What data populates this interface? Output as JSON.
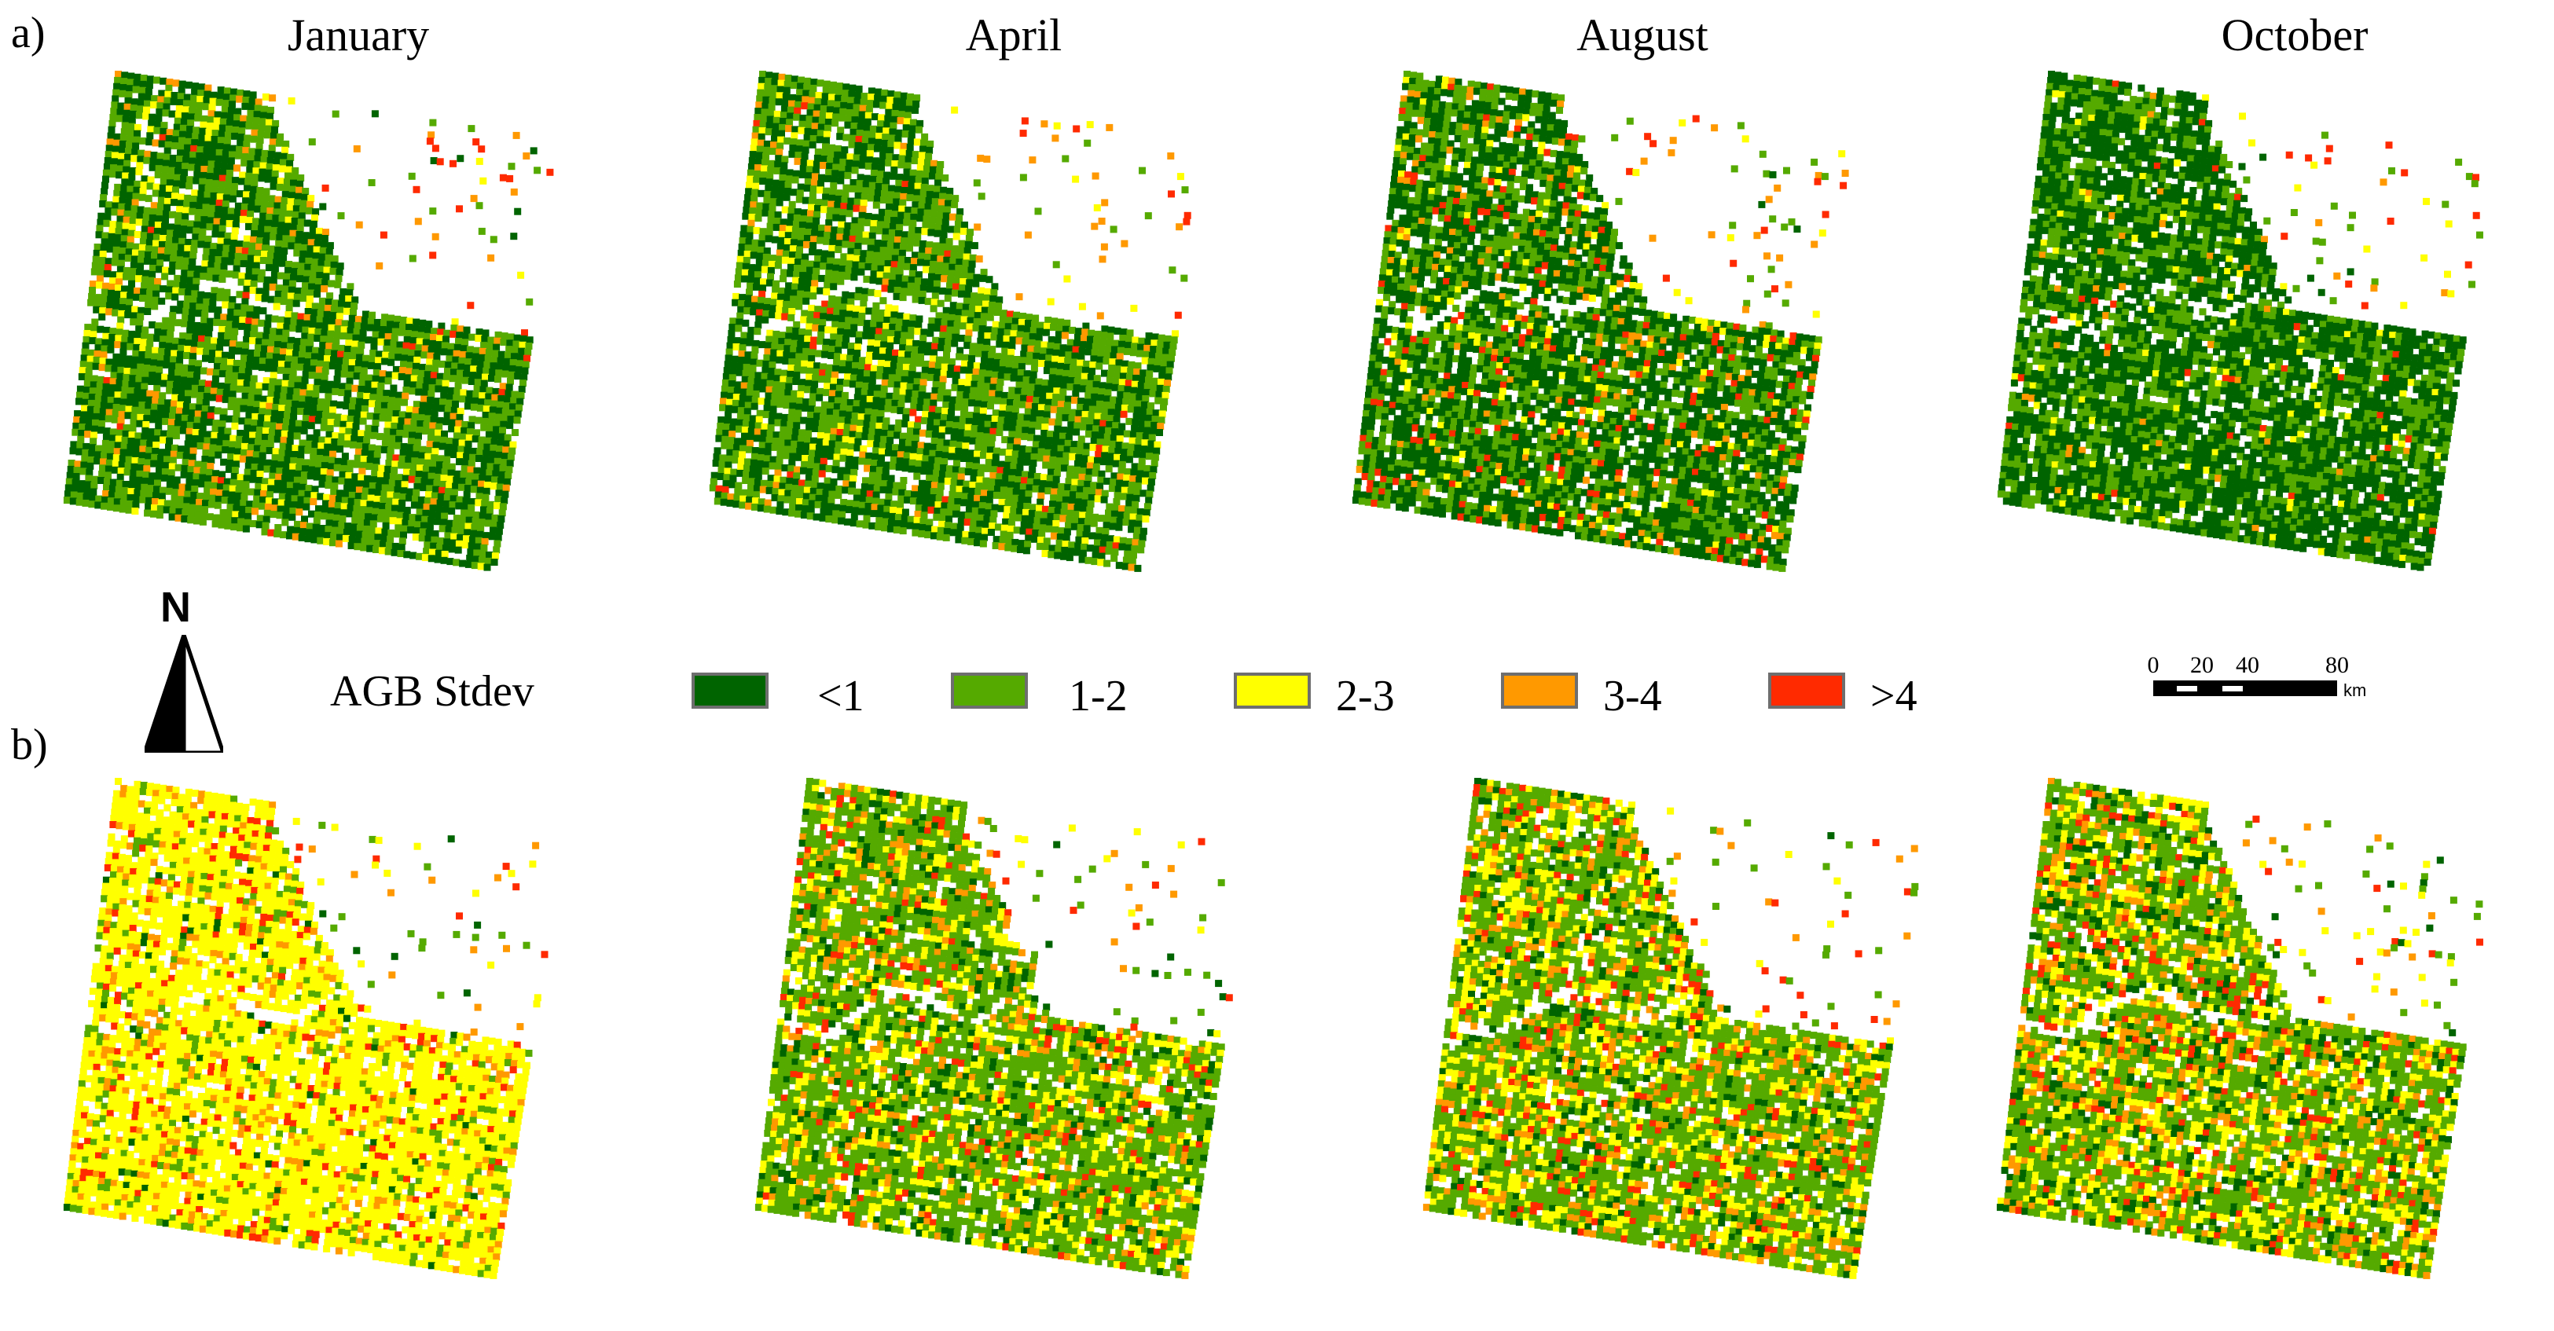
{
  "panels": [
    {
      "label": "a)",
      "key": "a"
    },
    {
      "label": "b)",
      "key": "b"
    }
  ],
  "months": [
    "January",
    "April",
    "August",
    "October"
  ],
  "legend": {
    "title": "AGB Stdev",
    "items": [
      {
        "label": "<1",
        "color": "#006400"
      },
      {
        "label": "1-2",
        "color": "#55aa00"
      },
      {
        "label": "2-3",
        "color": "#ffff00"
      },
      {
        "label": "3-4",
        "color": "#ff9900"
      },
      {
        "label": ">4",
        "color": "#ff2a00"
      }
    ]
  },
  "north_arrow": {
    "letter": "N",
    "icon": "north-arrow-icon"
  },
  "scale_bar": {
    "ticks": [
      "0",
      "20",
      "40",
      "80"
    ],
    "unit": "km"
  },
  "maps": {
    "a": [
      {
        "month": "January",
        "mix": {
          "dark": 0.45,
          "green": 0.42,
          "yellow": 0.08,
          "orange": 0.04,
          "red": 0.01
        }
      },
      {
        "month": "April",
        "mix": {
          "dark": 0.42,
          "green": 0.44,
          "yellow": 0.08,
          "orange": 0.04,
          "red": 0.02
        }
      },
      {
        "month": "August",
        "mix": {
          "dark": 0.52,
          "green": 0.33,
          "yellow": 0.04,
          "orange": 0.05,
          "red": 0.06
        }
      },
      {
        "month": "October",
        "mix": {
          "dark": 0.62,
          "green": 0.33,
          "yellow": 0.03,
          "orange": 0.01,
          "red": 0.01
        }
      }
    ],
    "b": [
      {
        "month": "January",
        "mix": {
          "dark": 0.02,
          "green": 0.1,
          "yellow": 0.72,
          "orange": 0.1,
          "red": 0.06
        }
      },
      {
        "month": "April",
        "mix": {
          "dark": 0.1,
          "green": 0.55,
          "yellow": 0.2,
          "orange": 0.1,
          "red": 0.05
        }
      },
      {
        "month": "August",
        "mix": {
          "dark": 0.1,
          "green": 0.5,
          "yellow": 0.22,
          "orange": 0.12,
          "red": 0.06
        }
      },
      {
        "month": "October",
        "mix": {
          "dark": 0.1,
          "green": 0.48,
          "yellow": 0.22,
          "orange": 0.13,
          "red": 0.07
        }
      }
    ]
  }
}
